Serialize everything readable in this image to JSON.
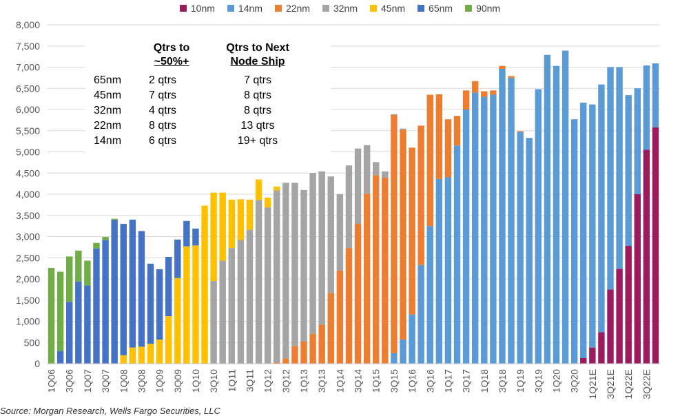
{
  "chart_data": {
    "type": "bar",
    "stacked": true,
    "ylim": [
      0,
      8000
    ],
    "yticks": [
      0,
      500,
      1000,
      1500,
      2000,
      2500,
      3000,
      3500,
      4000,
      4500,
      5000,
      5500,
      6000,
      6500,
      7000,
      7500,
      8000
    ],
    "ytick_labels": [
      "0",
      "500",
      "1,000",
      "1,500",
      "2,000",
      "2,500",
      "3,000",
      "3,500",
      "4,000",
      "4,500",
      "5,000",
      "5,500",
      "6,000",
      "6,500",
      "7,000",
      "7,500",
      "8,000"
    ],
    "grid": true,
    "legend_position": "top",
    "categories": [
      "1Q06",
      "2Q06",
      "3Q06",
      "4Q06",
      "1Q07",
      "2Q07",
      "3Q07",
      "4Q07",
      "1Q08",
      "2Q08",
      "3Q08",
      "4Q08",
      "1Q09",
      "2Q09",
      "3Q09",
      "4Q09",
      "1Q10",
      "2Q10",
      "3Q10",
      "4Q10",
      "1Q11",
      "2Q11",
      "3Q11",
      "4Q11",
      "1Q12",
      "2Q12",
      "3Q12",
      "4Q12",
      "1Q13",
      "2Q13",
      "3Q13",
      "4Q13",
      "1Q14",
      "2Q14",
      "3Q14",
      "4Q14",
      "1Q15",
      "2Q15",
      "3Q15",
      "4Q15",
      "1Q16",
      "2Q16",
      "3Q16",
      "4Q16",
      "1Q17",
      "2Q17",
      "3Q17",
      "4Q17",
      "1Q18",
      "2Q18",
      "3Q18",
      "4Q18",
      "1Q19",
      "2Q19",
      "3Q19",
      "4Q19",
      "1Q20",
      "2Q20",
      "3Q20",
      "4Q20",
      "1Q21E",
      "2Q21E",
      "3Q21E",
      "4Q21E",
      "1Q22E",
      "2Q22E",
      "3Q22E",
      "4Q22E"
    ],
    "xtick_labels_shown": [
      "1Q06",
      "3Q06",
      "1Q07",
      "3Q07",
      "1Q08",
      "3Q08",
      "1Q09",
      "3Q09",
      "1Q10",
      "3Q10",
      "1Q11",
      "3Q11",
      "1Q12",
      "3Q12",
      "1Q13",
      "3Q13",
      "1Q14",
      "3Q14",
      "1Q15",
      "3Q15",
      "1Q16",
      "3Q16",
      "1Q17",
      "3Q17",
      "1Q18",
      "3Q18",
      "1Q19",
      "3Q19",
      "1Q20",
      "3Q20",
      "1Q21E",
      "3Q21E",
      "1Q22E",
      "3Q22E"
    ],
    "series": [
      {
        "name": "10nm",
        "color": "#9B1C5E",
        "values": [
          0,
          0,
          0,
          0,
          0,
          0,
          0,
          0,
          0,
          0,
          0,
          0,
          0,
          0,
          0,
          0,
          0,
          0,
          0,
          0,
          0,
          0,
          0,
          0,
          0,
          0,
          0,
          0,
          0,
          0,
          0,
          0,
          0,
          0,
          0,
          0,
          0,
          0,
          0,
          0,
          0,
          0,
          0,
          0,
          0,
          0,
          0,
          0,
          0,
          0,
          0,
          0,
          0,
          0,
          0,
          0,
          0,
          0,
          0,
          130,
          380,
          740,
          1750,
          2240,
          2780,
          4000,
          5050,
          5580
        ]
      },
      {
        "name": "14nm",
        "color": "#5B9BD5",
        "values": [
          0,
          0,
          0,
          0,
          0,
          0,
          0,
          0,
          0,
          0,
          0,
          0,
          0,
          0,
          0,
          0,
          0,
          0,
          0,
          0,
          0,
          0,
          0,
          0,
          0,
          0,
          0,
          0,
          0,
          0,
          0,
          0,
          0,
          0,
          0,
          0,
          0,
          0,
          250,
          570,
          1160,
          2330,
          3250,
          4360,
          4400,
          5150,
          6000,
          6400,
          6300,
          6350,
          6960,
          6750,
          5470,
          5330,
          6480,
          7290,
          7030,
          7390,
          5770,
          6030,
          5740,
          5850,
          5250,
          4760,
          3560,
          2500,
          1990,
          1510
        ]
      },
      {
        "name": "22nm",
        "color": "#ED7D31",
        "values": [
          0,
          0,
          0,
          0,
          0,
          0,
          0,
          0,
          0,
          0,
          0,
          0,
          0,
          0,
          0,
          0,
          0,
          0,
          0,
          0,
          0,
          0,
          0,
          0,
          0,
          30,
          120,
          420,
          520,
          700,
          920,
          1670,
          2200,
          2730,
          3300,
          4010,
          4450,
          4390,
          5620,
          4950,
          3940,
          3290,
          3100,
          2000,
          1370,
          700,
          450,
          270,
          130,
          100,
          70,
          40,
          20,
          0,
          0,
          0,
          0,
          0,
          0,
          0,
          0,
          0,
          0,
          0,
          0,
          0,
          0,
          0
        ]
      },
      {
        "name": "32nm",
        "color": "#A5A5A5",
        "values": [
          0,
          0,
          0,
          0,
          0,
          0,
          0,
          0,
          0,
          0,
          0,
          0,
          0,
          0,
          0,
          0,
          0,
          0,
          1950,
          2430,
          2730,
          2920,
          3160,
          3860,
          3690,
          4060,
          4150,
          3850,
          3580,
          3800,
          3620,
          2750,
          1800,
          1950,
          1780,
          1150,
          310,
          150,
          20,
          30,
          0,
          0,
          0,
          0,
          0,
          0,
          0,
          0,
          0,
          0,
          0,
          0,
          0,
          0,
          0,
          0,
          0,
          0,
          0,
          0,
          0,
          0,
          0,
          0,
          0,
          0,
          0,
          0
        ]
      },
      {
        "name": "45nm",
        "color": "#FFC000",
        "values": [
          0,
          0,
          0,
          0,
          0,
          0,
          0,
          0,
          200,
          380,
          400,
          470,
          570,
          1120,
          2020,
          2770,
          2790,
          3730,
          2090,
          1610,
          1140,
          960,
          710,
          490,
          230,
          90,
          0,
          0,
          0,
          0,
          0,
          0,
          0,
          0,
          0,
          0,
          0,
          0,
          0,
          0,
          0,
          0,
          0,
          0,
          0,
          0,
          0,
          0,
          0,
          0,
          0,
          0,
          0,
          0,
          0,
          0,
          0,
          0,
          0,
          0,
          0,
          0,
          0,
          0,
          0,
          0,
          0,
          0
        ]
      },
      {
        "name": "65nm",
        "color": "#4472C4",
        "values": [
          0,
          300,
          1460,
          1940,
          1850,
          2720,
          2920,
          3390,
          3100,
          3020,
          2730,
          1890,
          1660,
          1400,
          910,
          600,
          400,
          0,
          0,
          0,
          0,
          0,
          0,
          0,
          0,
          0,
          0,
          0,
          0,
          0,
          0,
          0,
          0,
          0,
          0,
          0,
          0,
          0,
          0,
          0,
          0,
          0,
          0,
          0,
          0,
          0,
          0,
          0,
          0,
          0,
          0,
          0,
          0,
          0,
          0,
          0,
          0,
          0,
          0,
          0,
          0,
          0,
          0,
          0,
          0,
          0,
          0,
          0
        ]
      },
      {
        "name": "90nm",
        "color": "#70AD47",
        "values": [
          2260,
          1870,
          1070,
          730,
          580,
          130,
          70,
          30,
          0,
          0,
          0,
          0,
          0,
          0,
          0,
          0,
          0,
          0,
          0,
          0,
          0,
          0,
          0,
          0,
          0,
          0,
          0,
          0,
          0,
          0,
          0,
          0,
          0,
          0,
          0,
          0,
          0,
          0,
          0,
          0,
          0,
          0,
          0,
          0,
          0,
          0,
          0,
          0,
          0,
          0,
          0,
          0,
          0,
          0,
          0,
          0,
          0,
          0,
          0,
          0,
          0,
          0,
          0,
          0,
          0,
          0,
          0,
          0
        ]
      }
    ],
    "inset_table": {
      "headers": [
        "Qtrs to\n~50%+",
        "Qtrs to Next\nNode Ship"
      ],
      "rows": [
        {
          "node": "65nm",
          "to50": "2 qtrs",
          "next": "7 qtrs"
        },
        {
          "node": "45nm",
          "to50": "7 qtrs",
          "next": "8 qtrs"
        },
        {
          "node": "32nm",
          "to50": "4 qtrs",
          "next": "8 qtrs"
        },
        {
          "node": "22nm",
          "to50": "8 qtrs",
          "next": "13 qtrs"
        },
        {
          "node": "14nm",
          "to50": "6 qtrs",
          "next": "19+ qtrs"
        }
      ]
    },
    "source": "Source: Morgan Research, Wells Fargo Securities, LLC"
  },
  "inset": {
    "h1a": "Qtrs to",
    "h1b": "~50%+",
    "h2a": "Qtrs to Next",
    "h2b": "Node Ship"
  },
  "source": "Source: Morgan Research, Wells Fargo Securities, LLC"
}
